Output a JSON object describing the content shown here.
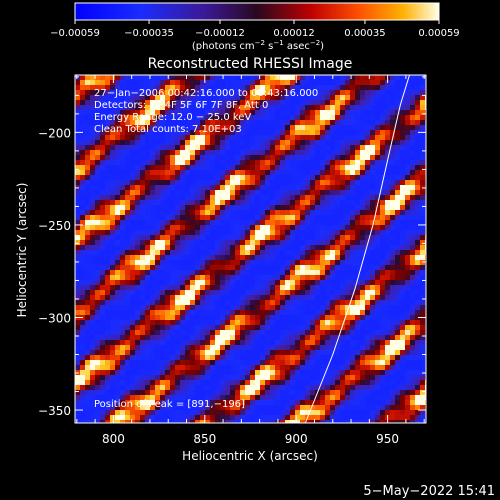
{
  "chart_data": {
    "type": "heatmap",
    "title": "Reconstructed RHESSI Image",
    "xlabel": "Heliocentric X (arcsec)",
    "ylabel": "Heliocentric Y (arcsec)",
    "xlim": [
      779,
      971
    ],
    "ylim": [
      -357,
      -169
    ],
    "xticks": [
      800,
      850,
      900,
      950
    ],
    "xtick_labels": [
      "800",
      "850",
      "900",
      "950"
    ],
    "yticks": [
      -200,
      -250,
      -300,
      -350
    ],
    "ytick_labels": [
      "−200",
      "−250",
      "−300",
      "−350"
    ],
    "colorbar": {
      "min": -0.00059,
      "max": 0.00059,
      "ticks": [
        -0.00059,
        -0.00035,
        -0.00012,
        0.00012,
        0.00035,
        0.00059
      ],
      "tick_labels": [
        "−0.00059",
        "−0.00035",
        "−0.00012",
        "0.00012",
        "0.00035",
        "0.00059"
      ],
      "units_line1": "(photons cm",
      "units_sup1": "−2",
      "units_mid1": " s",
      "units_sup2": "−1",
      "units_mid2": " asec",
      "units_sup3": "−2",
      "units_end": ")"
    },
    "annotations": [
      "27−Jan−2006 00:42:16.000 to 00:43:16.000",
      "Detectors: 3F 4F 5F 6F 7F 8F, Att 0",
      "Energy Range: 12.0 − 25.0 keV",
      "Clean    Total counts: 7.10E+03"
    ],
    "peak_label": "Position of Peak = [891,−196]",
    "limb_curve": [
      [
        905,
        -357
      ],
      [
        920,
        -320
      ],
      [
        932,
        -285
      ],
      [
        942,
        -250
      ],
      [
        950,
        -215
      ],
      [
        957,
        -185
      ],
      [
        962,
        -169
      ]
    ],
    "pattern": {
      "description_stripes_angle_deg": 35,
      "bright_ridges_y_at_x800": [
        -205,
        -288,
        -345
      ],
      "bright_ridges_y_at_x900": [
        -150,
        -232,
        -290
      ]
    }
  },
  "footer": {
    "date": "5−May−2022 15:41"
  }
}
